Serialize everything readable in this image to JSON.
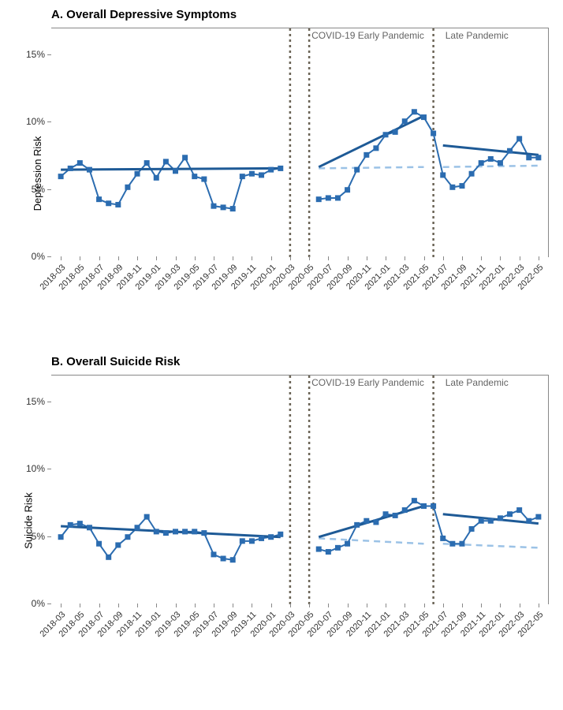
{
  "panel_a": {
    "title": "A. Overall Depressive Symptoms",
    "ylabel": "Depression Risk",
    "ylim": [
      0,
      17
    ],
    "yticks": [
      0,
      5,
      10,
      15
    ],
    "ytick_labels": [
      "0%",
      "5%",
      "10%",
      "15%"
    ],
    "xticks": [
      "2018-03",
      "2018-05",
      "2018-07",
      "2018-09",
      "2018-11",
      "2019-01",
      "2019-03",
      "2019-05",
      "2019-07",
      "2019-09",
      "2019-11",
      "2020-01",
      "2020-03",
      "2020-05",
      "2020-07",
      "2020-09",
      "2020-11",
      "2021-01",
      "2021-03",
      "2021-05",
      "2021-07",
      "2021-09",
      "2021-11",
      "2022-01",
      "2022-03",
      "2022-05"
    ],
    "data_x": [
      "2018-03",
      "2018-04",
      "2018-05",
      "2018-06",
      "2018-07",
      "2018-08",
      "2018-09",
      "2018-10",
      "2018-11",
      "2018-12",
      "2019-01",
      "2019-02",
      "2019-03",
      "2019-04",
      "2019-05",
      "2019-06",
      "2019-07",
      "2019-08",
      "2019-09",
      "2019-10",
      "2019-11",
      "2019-12",
      "2020-01",
      "2020-02",
      "2020-06",
      "2020-07",
      "2020-08",
      "2020-09",
      "2020-10",
      "2020-11",
      "2020-12",
      "2021-01",
      "2021-02",
      "2021-03",
      "2021-04",
      "2021-05",
      "2021-06",
      "2021-07",
      "2021-08",
      "2021-09",
      "2021-10",
      "2021-11",
      "2021-12",
      "2022-01",
      "2022-02",
      "2022-03",
      "2022-04",
      "2022-05"
    ],
    "data_y": [
      6.0,
      6.6,
      7.0,
      6.5,
      4.3,
      4.0,
      3.9,
      5.2,
      6.2,
      7.0,
      5.9,
      7.1,
      6.4,
      7.4,
      6.0,
      5.8,
      3.8,
      3.7,
      3.6,
      6.0,
      6.2,
      6.1,
      6.5,
      6.6,
      4.3,
      4.4,
      4.4,
      5.0,
      6.5,
      7.6,
      8.1,
      9.1,
      9.3,
      10.1,
      10.8,
      10.4,
      9.2,
      6.1,
      5.2,
      5.3,
      6.2,
      7.0,
      7.3,
      7.0,
      7.9,
      8.8,
      7.4,
      7.4
    ],
    "trend_lines": [
      {
        "x1": "2018-03",
        "y1": 6.5,
        "x2": "2020-02",
        "y2": 6.6
      },
      {
        "x1": "2020-06",
        "y1": 6.7,
        "x2": "2021-05",
        "y2": 10.5
      },
      {
        "x1": "2021-07",
        "y1": 8.3,
        "x2": "2022-05",
        "y2": 7.6
      }
    ],
    "dashed_lines": [
      {
        "x1": "2020-06",
        "y1": 6.6,
        "x2": "2021-05",
        "y2": 6.7
      },
      {
        "x1": "2021-07",
        "y1": 6.7,
        "x2": "2022-05",
        "y2": 6.8
      }
    ],
    "vlines": [
      "2020-03",
      "2020-05",
      "2021-06"
    ],
    "annotations": [
      {
        "text": "COVID-19 Early Pandemic",
        "x": "2020-05",
        "align": "left"
      },
      {
        "text": "Late Pandemic",
        "x": "2021-07",
        "align": "left"
      }
    ]
  },
  "panel_b": {
    "title": "B. Overall Suicide Risk",
    "ylabel": "Suicide Risk",
    "ylim": [
      0,
      17
    ],
    "yticks": [
      0,
      5,
      10,
      15
    ],
    "ytick_labels": [
      "0%",
      "5%",
      "10%",
      "15%"
    ],
    "xticks": [
      "2018-03",
      "2018-05",
      "2018-07",
      "2018-09",
      "2018-11",
      "2019-01",
      "2019-03",
      "2019-05",
      "2019-07",
      "2019-09",
      "2019-11",
      "2020-01",
      "2020-03",
      "2020-05",
      "2020-07",
      "2020-09",
      "2020-11",
      "2021-01",
      "2021-03",
      "2021-05",
      "2021-07",
      "2021-09",
      "2021-11",
      "2022-01",
      "2022-03",
      "2022-05"
    ],
    "data_x": [
      "2018-03",
      "2018-04",
      "2018-05",
      "2018-06",
      "2018-07",
      "2018-08",
      "2018-09",
      "2018-10",
      "2018-11",
      "2018-12",
      "2019-01",
      "2019-02",
      "2019-03",
      "2019-04",
      "2019-05",
      "2019-06",
      "2019-07",
      "2019-08",
      "2019-09",
      "2019-10",
      "2019-11",
      "2019-12",
      "2020-01",
      "2020-02",
      "2020-06",
      "2020-07",
      "2020-08",
      "2020-09",
      "2020-10",
      "2020-11",
      "2020-12",
      "2021-01",
      "2021-02",
      "2021-03",
      "2021-04",
      "2021-05",
      "2021-06",
      "2021-07",
      "2021-08",
      "2021-09",
      "2021-10",
      "2021-11",
      "2021-12",
      "2022-01",
      "2022-02",
      "2022-03",
      "2022-04",
      "2022-05"
    ],
    "data_y": [
      5.0,
      5.9,
      6.0,
      5.7,
      4.5,
      3.5,
      4.4,
      5.0,
      5.7,
      6.5,
      5.4,
      5.3,
      5.4,
      5.4,
      5.4,
      5.3,
      3.7,
      3.4,
      3.3,
      4.7,
      4.7,
      4.9,
      5.0,
      5.2,
      4.1,
      3.9,
      4.2,
      4.5,
      5.9,
      6.2,
      6.1,
      6.7,
      6.6,
      7.0,
      7.7,
      7.3,
      7.3,
      4.9,
      4.5,
      4.5,
      5.6,
      6.2,
      6.2,
      6.4,
      6.7,
      7.0,
      6.2,
      6.5
    ],
    "trend_lines": [
      {
        "x1": "2018-03",
        "y1": 5.8,
        "x2": "2020-02",
        "y2": 5.0
      },
      {
        "x1": "2020-06",
        "y1": 5.0,
        "x2": "2021-05",
        "y2": 7.3
      },
      {
        "x1": "2021-07",
        "y1": 6.7,
        "x2": "2022-05",
        "y2": 6.0
      }
    ],
    "dashed_lines": [
      {
        "x1": "2020-06",
        "y1": 4.9,
        "x2": "2021-05",
        "y2": 4.5
      },
      {
        "x1": "2021-07",
        "y1": 4.5,
        "x2": "2022-05",
        "y2": 4.2
      }
    ],
    "vlines": [
      "2020-03",
      "2020-05",
      "2021-06"
    ],
    "annotations": [
      {
        "text": "COVID-19 Early Pandemic",
        "x": "2020-05",
        "align": "left"
      },
      {
        "text": "Late Pandemic",
        "x": "2021-07",
        "align": "left"
      }
    ]
  },
  "style": {
    "point_color": "#2b6cb0",
    "line_color": "#2b6cb0",
    "trend_color": "#1e5a96",
    "dashed_color": "#9bc2e6",
    "vline_color": "#6b6456",
    "marker_size": 7,
    "line_width": 2,
    "trend_width": 3,
    "dashed_width": 2.5,
    "vline_width": 2.5,
    "background_color": "#ffffff"
  },
  "time_start": "2018-02",
  "time_end": "2022-06"
}
